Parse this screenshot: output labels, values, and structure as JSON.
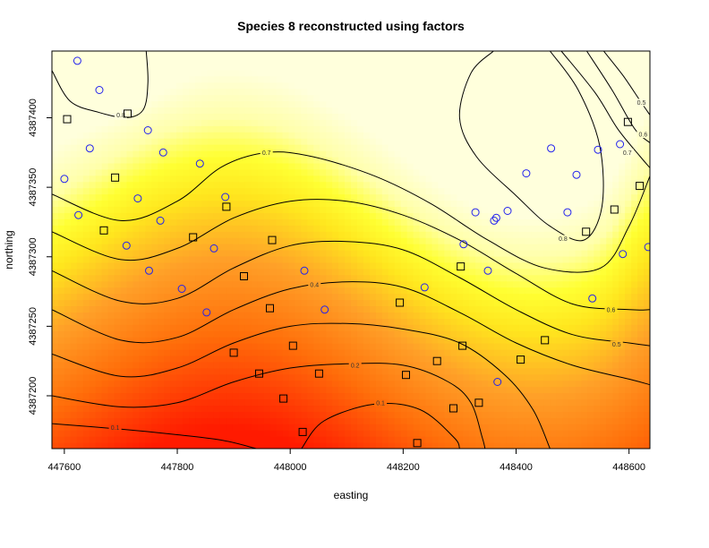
{
  "chart_data": {
    "type": "heatmap",
    "title": "Species 8 reconstructed using factors",
    "xlabel": "easting",
    "ylabel": "northing",
    "xlim": [
      447578,
      448637
    ],
    "ylim": [
      4387162,
      4387448
    ],
    "x_ticks": [
      447600,
      447800,
      448000,
      448200,
      448400,
      448600
    ],
    "y_ticks": [
      4387200,
      4387250,
      4387300,
      4387350,
      4387400
    ],
    "x_tick_labels": [
      "447600",
      "447800",
      "448000",
      "448200",
      "448400",
      "448600"
    ],
    "y_tick_labels": [
      "4387200",
      "4387250",
      "4387300",
      "4387350",
      "4387400"
    ],
    "color_scale": {
      "low": "#ff1a00",
      "mid": "#ff9d22",
      "high_mid": "#ffff2a",
      "high": "#ffffd8"
    },
    "contours": [
      {
        "level": 0.1,
        "label": "0.1",
        "points": [
          [
            447578,
            4387180
          ],
          [
            447700,
            4387176
          ],
          [
            447800,
            4387172
          ],
          [
            447880,
            4387168
          ],
          [
            447940,
            4387162
          ]
        ]
      },
      {
        "level": 0.1,
        "label": "0.1",
        "points": [
          [
            448020,
            4387162
          ],
          [
            448060,
            4387182
          ],
          [
            448150,
            4387194
          ],
          [
            448230,
            4387190
          ],
          [
            448290,
            4387170
          ],
          [
            448300,
            4387162
          ]
        ]
      },
      {
        "level": 0.2,
        "label": "0.2",
        "points": [
          [
            447578,
            4387200
          ],
          [
            447700,
            4387192
          ],
          [
            447800,
            4387195
          ],
          [
            447900,
            4387210
          ],
          [
            448000,
            4387220
          ],
          [
            448100,
            4387223
          ],
          [
            448200,
            4387222
          ],
          [
            448280,
            4387210
          ],
          [
            448320,
            4387195
          ],
          [
            448340,
            4387170
          ],
          [
            448345,
            4387162
          ]
        ]
      },
      {
        "level": 0.3,
        "label": "0.3",
        "points": [
          [
            447578,
            4387230
          ],
          [
            447700,
            4387214
          ],
          [
            447800,
            4387220
          ],
          [
            447900,
            4387238
          ],
          [
            448000,
            4387250
          ],
          [
            448100,
            4387252
          ],
          [
            448200,
            4387248
          ],
          [
            448300,
            4387238
          ],
          [
            448380,
            4387215
          ],
          [
            448430,
            4387190
          ],
          [
            448460,
            4387162
          ]
        ]
      },
      {
        "level": 0.4,
        "label": "0.4",
        "points": [
          [
            447578,
            4387262
          ],
          [
            447700,
            4387240
          ],
          [
            447800,
            4387242
          ],
          [
            447900,
            4387262
          ],
          [
            448000,
            4387277
          ],
          [
            448100,
            4387282
          ],
          [
            448200,
            4387278
          ],
          [
            448300,
            4387260
          ],
          [
            448400,
            4387238
          ],
          [
            448500,
            4387222
          ],
          [
            448600,
            4387212
          ],
          [
            448637,
            4387208
          ]
        ]
      },
      {
        "level": 0.5,
        "label": "0.5",
        "points": [
          [
            447578,
            4387290
          ],
          [
            447700,
            4387268
          ],
          [
            447800,
            4387270
          ],
          [
            447900,
            4387292
          ],
          [
            448000,
            4387308
          ],
          [
            448100,
            4387311
          ],
          [
            448200,
            4387305
          ],
          [
            448300,
            4387285
          ],
          [
            448400,
            4387262
          ],
          [
            448500,
            4387244
          ],
          [
            448600,
            4387238
          ],
          [
            448637,
            4387236
          ]
        ]
      },
      {
        "level": 0.6,
        "label": "0.6",
        "points": [
          [
            447578,
            4387318
          ],
          [
            447700,
            4387298
          ],
          [
            447800,
            4387306
          ],
          [
            447900,
            4387328
          ],
          [
            448000,
            4387340
          ],
          [
            448100,
            4387340
          ],
          [
            448200,
            4387330
          ],
          [
            448300,
            4387312
          ],
          [
            448400,
            4387288
          ],
          [
            448500,
            4387266
          ],
          [
            448600,
            4387262
          ],
          [
            448637,
            4387262
          ]
        ]
      },
      {
        "level": 0.7,
        "label": "0.7",
        "points": [
          [
            447578,
            4387345
          ],
          [
            447700,
            4387326
          ],
          [
            447800,
            4387340
          ],
          [
            447880,
            4387365
          ],
          [
            447960,
            4387375
          ],
          [
            448040,
            4387372
          ],
          [
            448150,
            4387358
          ],
          [
            448250,
            4387338
          ],
          [
            448350,
            4387312
          ],
          [
            448450,
            4387292
          ],
          [
            448550,
            4387292
          ],
          [
            448600,
            4387322
          ],
          [
            448637,
            4387358
          ]
        ]
      },
      {
        "level": 0.7,
        "label": "0.7",
        "points": [
          [
            448480,
            4387448
          ],
          [
            448540,
            4387418
          ],
          [
            448580,
            4387392
          ],
          [
            448620,
            4387372
          ],
          [
            448637,
            4387364
          ]
        ]
      },
      {
        "level": 0.8,
        "label": "0.8",
        "points": [
          [
            447578,
            4387434
          ],
          [
            447610,
            4387412
          ],
          [
            447660,
            4387404
          ],
          [
            447710,
            4387400
          ],
          [
            447740,
            4387406
          ],
          [
            447748,
            4387425
          ],
          [
            447745,
            4387448
          ]
        ]
      },
      {
        "level": 0.8,
        "label": "0.8",
        "points": [
          [
            448360,
            4387448
          ],
          [
            448320,
            4387432
          ],
          [
            448300,
            4387400
          ],
          [
            448330,
            4387372
          ],
          [
            448400,
            4387344
          ],
          [
            448460,
            4387322
          ],
          [
            448520,
            4387312
          ],
          [
            448552,
            4387336
          ],
          [
            448548,
            4387380
          ],
          [
            448510,
            4387420
          ],
          [
            448460,
            4387448
          ]
        ]
      },
      {
        "level": 0.5,
        "label": "0.5",
        "points": [
          [
            448555,
            4387448
          ],
          [
            448590,
            4387430
          ],
          [
            448620,
            4387412
          ],
          [
            448637,
            4387402
          ]
        ]
      },
      {
        "level": 0.6,
        "label": "0.6",
        "points": [
          [
            448525,
            4387448
          ],
          [
            448570,
            4387420
          ],
          [
            448610,
            4387392
          ],
          [
            448637,
            4387382
          ]
        ]
      }
    ],
    "contour_label_positions": [
      {
        "label": "0.8",
        "x": 447700,
        "y": 4387402
      },
      {
        "label": "0.7",
        "x": 447958,
        "y": 4387375
      },
      {
        "label": "0.4",
        "x": 448043,
        "y": 4387280
      },
      {
        "label": "0.2",
        "x": 448115,
        "y": 4387222
      },
      {
        "label": "0.1",
        "x": 448160,
        "y": 4387195
      },
      {
        "label": "0.1",
        "x": 447690,
        "y": 4387177
      },
      {
        "label": "0.6",
        "x": 448568,
        "y": 4387262
      },
      {
        "label": "0.5",
        "x": 448578,
        "y": 4387237
      },
      {
        "label": "0.8",
        "x": 448483,
        "y": 4387313
      },
      {
        "label": "0.7",
        "x": 448597,
        "y": 4387375
      },
      {
        "label": "0.6",
        "x": 448625,
        "y": 4387388
      },
      {
        "label": "0.5",
        "x": 448622,
        "y": 4387411
      }
    ],
    "series": [
      {
        "marker": "circle",
        "color": "#2222ee",
        "points": [
          [
            447623,
            4387441
          ],
          [
            447662,
            4387420
          ],
          [
            447645,
            4387378
          ],
          [
            447748,
            4387391
          ],
          [
            447600,
            4387356
          ],
          [
            447775,
            4387375
          ],
          [
            447840,
            4387367
          ],
          [
            447730,
            4387342
          ],
          [
            447625,
            4387330
          ],
          [
            447770,
            4387326
          ],
          [
            447710,
            4387308
          ],
          [
            447750,
            4387290
          ],
          [
            447865,
            4387306
          ],
          [
            447885,
            4387343
          ],
          [
            447808,
            4387277
          ],
          [
            447852,
            4387260
          ],
          [
            448025,
            4387290
          ],
          [
            448061,
            4387262
          ],
          [
            448238,
            4387278
          ],
          [
            448307,
            4387309
          ],
          [
            448361,
            4387326
          ],
          [
            448385,
            4387333
          ],
          [
            448418,
            4387360
          ],
          [
            448491,
            4387332
          ],
          [
            448462,
            4387378
          ],
          [
            448507,
            4387359
          ],
          [
            448545,
            4387377
          ],
          [
            448584,
            4387381
          ],
          [
            448589,
            4387302
          ],
          [
            448634,
            4387307
          ],
          [
            448535,
            4387270
          ],
          [
            448350,
            4387290
          ],
          [
            448367,
            4387210
          ],
          [
            448328,
            4387332
          ],
          [
            448365,
            4387328
          ]
        ]
      },
      {
        "marker": "square",
        "color": "#000000",
        "points": [
          [
            447605,
            4387399
          ],
          [
            447712,
            4387403
          ],
          [
            447690,
            4387357
          ],
          [
            447670,
            4387319
          ],
          [
            447828,
            4387314
          ],
          [
            447887,
            4387336
          ],
          [
            447968,
            4387312
          ],
          [
            447918,
            4387286
          ],
          [
            447964,
            4387263
          ],
          [
            447900,
            4387231
          ],
          [
            447945,
            4387216
          ],
          [
            448005,
            4387236
          ],
          [
            448051,
            4387216
          ],
          [
            447988,
            4387198
          ],
          [
            448022,
            4387174
          ],
          [
            448194,
            4387267
          ],
          [
            448205,
            4387215
          ],
          [
            448260,
            4387225
          ],
          [
            448289,
            4387191
          ],
          [
            448305,
            4387236
          ],
          [
            448302,
            4387293
          ],
          [
            448334,
            4387195
          ],
          [
            448408,
            4387226
          ],
          [
            448451,
            4387240
          ],
          [
            448524,
            4387318
          ],
          [
            448574,
            4387334
          ],
          [
            448598,
            4387397
          ],
          [
            448619,
            4387351
          ],
          [
            448225,
            4387166
          ]
        ]
      }
    ]
  }
}
